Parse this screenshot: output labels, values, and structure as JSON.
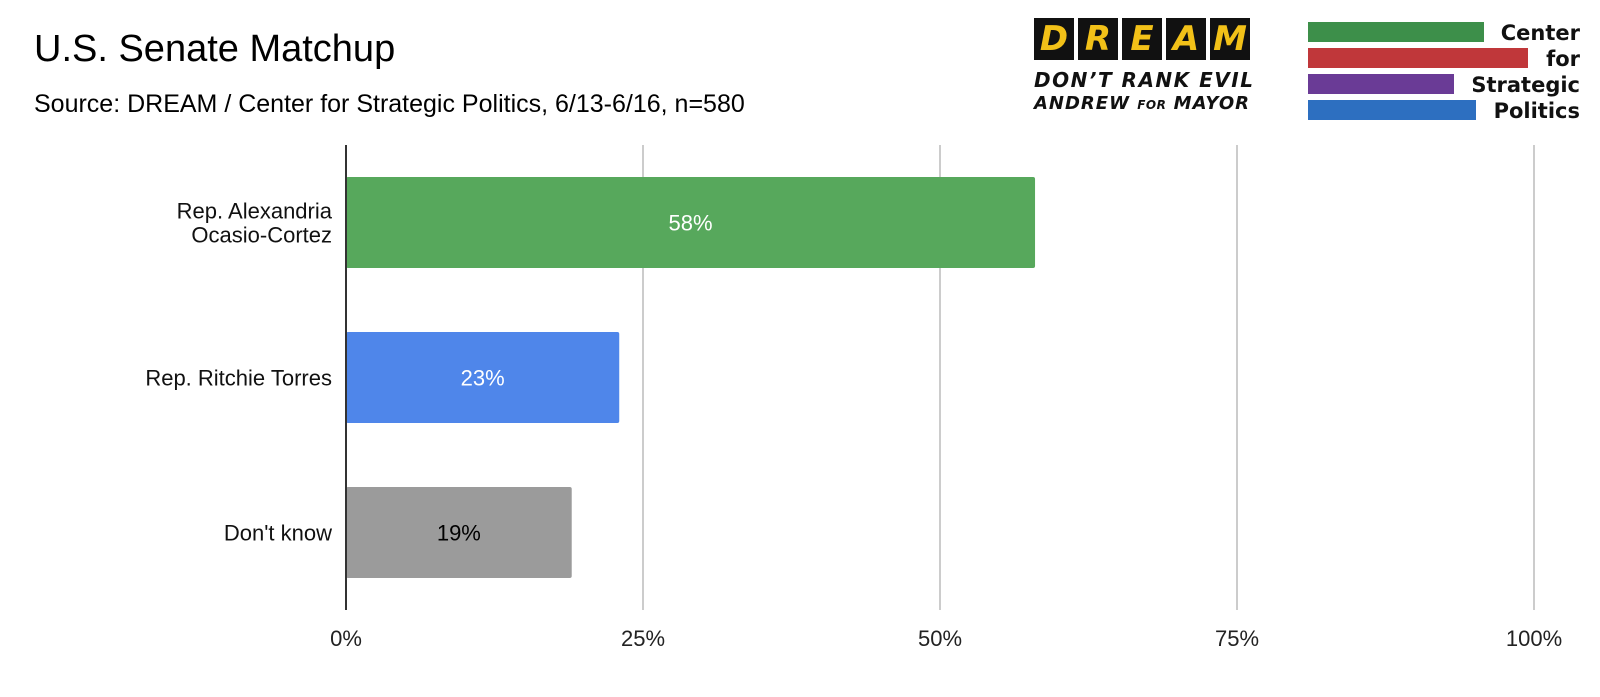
{
  "header": {
    "title": "U.S. Senate Matchup",
    "subtitle": "Source:  DREAM / Center for Strategic Politics, 6/13-6/16, n=580"
  },
  "logos": {
    "dream": {
      "letters": [
        "D",
        "R",
        "E",
        "A",
        "M"
      ],
      "tagline_line1": "DON’T RANK EVIL",
      "tagline_line2_start": "ANDREW",
      "tagline_line2_small": "FOR",
      "tagline_line2_end": "MAYOR",
      "letter_color": "#f2c118",
      "box_color": "#111111"
    },
    "csp": {
      "rows": [
        {
          "word": "Center",
          "color": "#3d8f4a"
        },
        {
          "word": "for",
          "color": "#c0373a"
        },
        {
          "word": "Strategic",
          "color": "#6a3b96"
        },
        {
          "word": "Politics",
          "color": "#2d6fc0"
        }
      ]
    }
  },
  "chart_data": {
    "type": "bar",
    "orientation": "horizontal",
    "categories": [
      "Rep. Alexandria Ocasio-Cortez",
      "Rep. Ritchie Torres",
      "Don't know"
    ],
    "category_lines": [
      [
        "Rep. Alexandria",
        "Ocasio-Cortez"
      ],
      [
        "Rep. Ritchie Torres"
      ],
      [
        "Don't know"
      ]
    ],
    "values": [
      58,
      23,
      19
    ],
    "data_labels": [
      "58%",
      "23%",
      "19%"
    ],
    "bar_colors": [
      "#57a85c",
      "#4f86ea",
      "#9b9b9b"
    ],
    "label_colors": [
      "#ffffff",
      "#ffffff",
      "#000000"
    ],
    "xlim": [
      0,
      100
    ],
    "xticks": [
      0,
      25,
      50,
      75,
      100
    ],
    "xtick_labels": [
      "0%",
      "25%",
      "50%",
      "75%",
      "100%"
    ],
    "grid": true
  }
}
